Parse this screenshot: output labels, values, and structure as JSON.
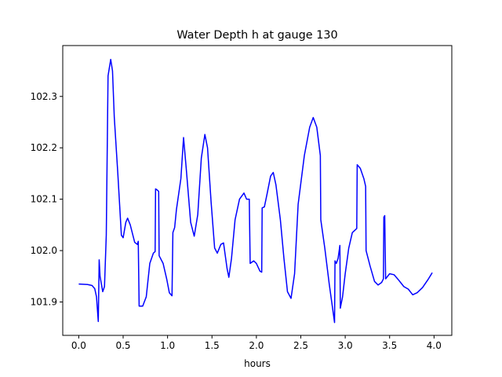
{
  "chart_data": {
    "type": "line",
    "title": "Water Depth h at gauge 130",
    "xlabel": "hours",
    "ylabel": "",
    "xlim": [
      -0.18,
      4.2
    ],
    "ylim": [
      101.835,
      102.399
    ],
    "xticks": [
      0.0,
      0.5,
      1.0,
      1.5,
      2.0,
      2.5,
      3.0,
      3.5,
      4.0
    ],
    "xtick_labels": [
      "0.0",
      "0.5",
      "1.0",
      "1.5",
      "2.0",
      "2.5",
      "3.0",
      "3.5",
      "4.0"
    ],
    "yticks": [
      101.9,
      102.0,
      102.1,
      102.2,
      102.3
    ],
    "ytick_labels": [
      "101.9",
      "102.0",
      "102.1",
      "102.2",
      "102.3"
    ],
    "grid": false,
    "legend": "none",
    "series": [
      {
        "name": "",
        "color": "#0000ff",
        "points": [
          [
            0.0,
            101.935
          ],
          [
            0.1,
            101.934
          ],
          [
            0.15,
            101.932
          ],
          [
            0.18,
            101.926
          ],
          [
            0.2,
            101.91
          ],
          [
            0.22,
            101.862
          ],
          [
            0.23,
            101.982
          ],
          [
            0.24,
            101.95
          ],
          [
            0.27,
            101.92
          ],
          [
            0.29,
            101.93
          ],
          [
            0.31,
            102.03
          ],
          [
            0.33,
            102.34
          ],
          [
            0.36,
            102.372
          ],
          [
            0.38,
            102.35
          ],
          [
            0.4,
            102.26
          ],
          [
            0.44,
            102.15
          ],
          [
            0.48,
            102.03
          ],
          [
            0.5,
            102.025
          ],
          [
            0.53,
            102.055
          ],
          [
            0.55,
            102.063
          ],
          [
            0.58,
            102.05
          ],
          [
            0.63,
            102.016
          ],
          [
            0.66,
            102.012
          ],
          [
            0.67,
            102.018
          ],
          [
            0.68,
            101.892
          ],
          [
            0.72,
            101.892
          ],
          [
            0.76,
            101.91
          ],
          [
            0.8,
            101.975
          ],
          [
            0.84,
            101.995
          ],
          [
            0.86,
            101.998
          ],
          [
            0.865,
            102.12
          ],
          [
            0.89,
            102.117
          ],
          [
            0.9,
            102.115
          ],
          [
            0.905,
            101.99
          ],
          [
            0.95,
            101.975
          ],
          [
            0.99,
            101.945
          ],
          [
            1.02,
            101.918
          ],
          [
            1.05,
            101.912
          ],
          [
            1.06,
            102.035
          ],
          [
            1.08,
            102.045
          ],
          [
            1.1,
            102.08
          ],
          [
            1.15,
            102.14
          ],
          [
            1.18,
            102.22
          ],
          [
            1.21,
            102.16
          ],
          [
            1.26,
            102.055
          ],
          [
            1.3,
            102.028
          ],
          [
            1.34,
            102.07
          ],
          [
            1.38,
            102.18
          ],
          [
            1.42,
            102.226
          ],
          [
            1.45,
            102.2
          ],
          [
            1.49,
            102.095
          ],
          [
            1.53,
            102.005
          ],
          [
            1.56,
            101.995
          ],
          [
            1.6,
            102.012
          ],
          [
            1.63,
            102.015
          ],
          [
            1.67,
            101.965
          ],
          [
            1.69,
            101.948
          ],
          [
            1.72,
            101.985
          ],
          [
            1.76,
            102.06
          ],
          [
            1.81,
            102.1
          ],
          [
            1.86,
            102.112
          ],
          [
            1.89,
            102.1
          ],
          [
            1.92,
            102.1
          ],
          [
            1.93,
            101.975
          ],
          [
            1.97,
            101.98
          ],
          [
            2.0,
            101.975
          ],
          [
            2.04,
            101.96
          ],
          [
            2.06,
            101.958
          ],
          [
            2.065,
            102.083
          ],
          [
            2.09,
            102.085
          ],
          [
            2.12,
            102.11
          ],
          [
            2.16,
            102.145
          ],
          [
            2.19,
            102.152
          ],
          [
            2.22,
            102.128
          ],
          [
            2.27,
            102.06
          ],
          [
            2.31,
            101.985
          ],
          [
            2.35,
            101.92
          ],
          [
            2.39,
            101.907
          ],
          [
            2.43,
            101.955
          ],
          [
            2.47,
            102.09
          ],
          [
            2.54,
            102.185
          ],
          [
            2.6,
            102.24
          ],
          [
            2.64,
            102.259
          ],
          [
            2.68,
            102.24
          ],
          [
            2.72,
            102.185
          ],
          [
            2.725,
            102.06
          ],
          [
            2.77,
            102.005
          ],
          [
            2.82,
            101.935
          ],
          [
            2.86,
            101.885
          ],
          [
            2.88,
            101.86
          ],
          [
            2.885,
            101.98
          ],
          [
            2.9,
            101.975
          ],
          [
            2.92,
            101.985
          ],
          [
            2.94,
            102.01
          ],
          [
            2.945,
            101.888
          ],
          [
            2.97,
            101.91
          ],
          [
            3.0,
            101.955
          ],
          [
            3.04,
            102.005
          ],
          [
            3.08,
            102.035
          ],
          [
            3.13,
            102.043
          ],
          [
            3.135,
            102.167
          ],
          [
            3.17,
            102.16
          ],
          [
            3.21,
            102.14
          ],
          [
            3.23,
            102.125
          ],
          [
            3.235,
            102.0
          ],
          [
            3.28,
            101.97
          ],
          [
            3.33,
            101.94
          ],
          [
            3.37,
            101.933
          ],
          [
            3.41,
            101.938
          ],
          [
            3.43,
            101.945
          ],
          [
            3.435,
            102.065
          ],
          [
            3.445,
            102.068
          ],
          [
            3.455,
            101.945
          ],
          [
            3.5,
            101.955
          ],
          [
            3.55,
            101.953
          ],
          [
            3.6,
            101.943
          ],
          [
            3.66,
            101.93
          ],
          [
            3.71,
            101.925
          ],
          [
            3.76,
            101.914
          ],
          [
            3.81,
            101.918
          ],
          [
            3.87,
            101.928
          ],
          [
            3.93,
            101.943
          ],
          [
            3.98,
            101.957
          ]
        ]
      }
    ]
  }
}
